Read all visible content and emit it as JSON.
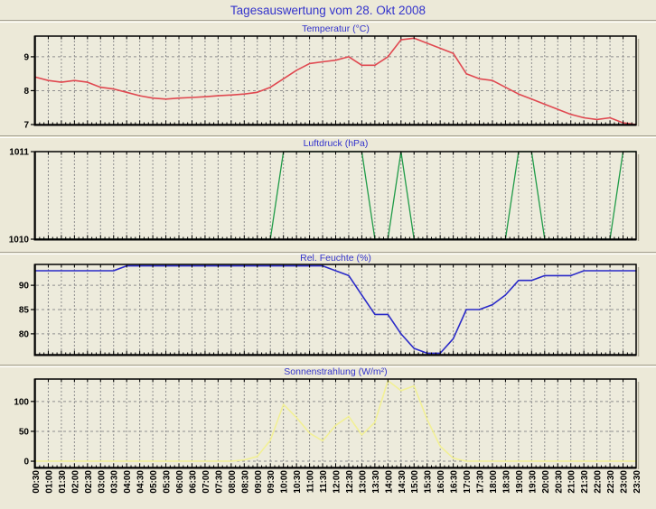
{
  "page": {
    "title": "Tagesauswertung vom 28. Okt 2008",
    "title_color": "#3333CC",
    "background_color": "#ECE9D8",
    "plot_background": "#EDEBDC",
    "grid_color": "#8F8F8F",
    "frame_color": "#000000",
    "label_color": "#000000"
  },
  "x_axis": {
    "labels": [
      "00:30",
      "01:00",
      "01:30",
      "02:00",
      "02:30",
      "03:00",
      "03:30",
      "04:00",
      "04:30",
      "05:00",
      "05:30",
      "06:00",
      "06:30",
      "07:00",
      "07:30",
      "08:00",
      "08:30",
      "09:00",
      "09:30",
      "10:00",
      "10:30",
      "11:00",
      "11:30",
      "12:00",
      "12:30",
      "13:00",
      "13:30",
      "14:00",
      "14:30",
      "15:00",
      "15:30",
      "16:00",
      "16:30",
      "17:00",
      "17:30",
      "18:00",
      "18:30",
      "19:00",
      "19:30",
      "20:00",
      "20:30",
      "21:00",
      "21:30",
      "22:00",
      "22:30",
      "23:00",
      "23:30"
    ]
  },
  "chart_data": [
    {
      "type": "line",
      "name": "temperatur",
      "title": "Temperatur (°C)",
      "color": "#E04850",
      "ylabel_ticks": [
        7,
        8,
        9
      ],
      "yticks": [
        7,
        8,
        9
      ],
      "ylim": [
        7,
        9.61
      ],
      "legend": "none",
      "grid": true,
      "values": [
        8.4,
        8.3,
        8.25,
        8.3,
        8.25,
        8.1,
        8.05,
        7.95,
        7.85,
        7.78,
        7.75,
        7.78,
        7.8,
        7.82,
        7.85,
        7.87,
        7.9,
        7.95,
        8.1,
        8.35,
        8.6,
        8.8,
        8.85,
        8.9,
        9.0,
        8.75,
        8.75,
        9.0,
        9.5,
        9.55,
        9.4,
        9.25,
        9.1,
        8.5,
        8.35,
        8.3,
        8.1,
        7.9,
        7.75,
        7.6,
        7.45,
        7.3,
        7.2,
        7.15,
        7.2,
        7.05,
        7.0
      ]
    },
    {
      "type": "line",
      "name": "luftdruck",
      "title": "Luftdruck (hPa)",
      "color": "#209B48",
      "yticks": [
        1010,
        1011
      ],
      "ylim": [
        1010,
        1011
      ],
      "grid": true,
      "values": [
        1010,
        1010,
        1010,
        1010,
        1010,
        1010,
        1010,
        1010,
        1010,
        1010,
        1010,
        1010,
        1010,
        1010,
        1010,
        1010,
        1010,
        1010,
        1010,
        1011,
        1011,
        1011,
        1011,
        1011,
        1011,
        1011,
        1010,
        1010,
        1011,
        1010,
        1010,
        1010,
        1010,
        1010,
        1010,
        1010,
        1010,
        1011,
        1011,
        1010,
        1010,
        1010,
        1010,
        1010,
        1010,
        1011,
        1011
      ]
    },
    {
      "type": "line",
      "name": "feuchte",
      "title": "Rel. Feuchte (%)",
      "color": "#2A2AC8",
      "yticks": [
        80,
        85,
        90
      ],
      "ylim": [
        75.7,
        94.3
      ],
      "grid": true,
      "values": [
        93,
        93,
        93,
        93,
        93,
        93,
        93,
        94,
        94,
        94,
        94,
        94,
        94,
        94,
        94,
        94,
        94,
        94,
        94,
        94,
        94,
        94,
        94,
        93,
        92,
        88,
        84,
        84,
        80,
        77,
        76,
        76,
        79,
        85,
        85,
        86,
        88,
        91,
        91,
        92,
        92,
        92,
        93,
        93,
        93,
        93,
        93
      ]
    },
    {
      "type": "line",
      "name": "sonnenstrahlung",
      "title": "Sonnenstrahlung (W/m²)",
      "color": "#F2F095",
      "yticks": [
        0,
        50,
        100
      ],
      "ylim": [
        -10.5,
        137.5
      ],
      "grid": true,
      "values": [
        0,
        0,
        0,
        0,
        0,
        0,
        0,
        0,
        0,
        0,
        0,
        0,
        0,
        0,
        0,
        0,
        2,
        8,
        35,
        95,
        73,
        47,
        34,
        60,
        75,
        44,
        65,
        135,
        118,
        126,
        70,
        25,
        5,
        0,
        0,
        0,
        0,
        0,
        0,
        0,
        0,
        0,
        0,
        0,
        0,
        0,
        0
      ]
    }
  ]
}
